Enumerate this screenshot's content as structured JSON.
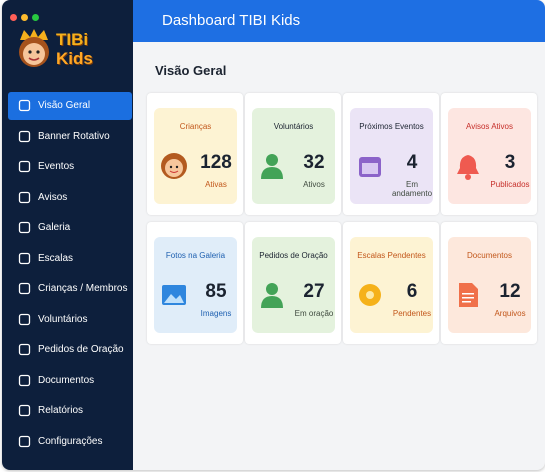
{
  "sidebar": {
    "logo": {
      "line1": "TIBi",
      "line2": "Kids"
    },
    "menu": [
      "Visão Geral",
      "Banner Rotativo",
      "Eventos",
      "Avisos",
      "Galeria",
      "Escalas",
      "Crianças / Membros",
      "Voluntários",
      "Pedidos de Oração",
      "Documentos",
      "Relatórios",
      "Configurações"
    ]
  },
  "header": {
    "title": "Dashboard TIBI Kids"
  },
  "content": {
    "title": "Visão Geral",
    "cards": [
      {
        "title": "Crianças",
        "value": 128,
        "subtitle": "Ativas"
      },
      {
        "title": "Voluntários",
        "value": 32,
        "subtitle": "Ativos"
      },
      {
        "title": "Próximos Eventos",
        "value": 4,
        "subtitle": "Em andamento"
      },
      {
        "title": "Avisos Ativos",
        "value": 3,
        "subtitle": "Publicados"
      },
      {
        "title": "Fotos na Galeria",
        "value": 85,
        "subtitle": "Imagens"
      },
      {
        "title": "Pedidos de Oração",
        "value": 27,
        "subtitle": "Em oração"
      },
      {
        "title": "Escalas Pendentes",
        "value": 6,
        "subtitle": "Pendentes"
      },
      {
        "title": "Documentos",
        "value": 12,
        "subtitle": "Arquivos"
      }
    ]
  }
}
